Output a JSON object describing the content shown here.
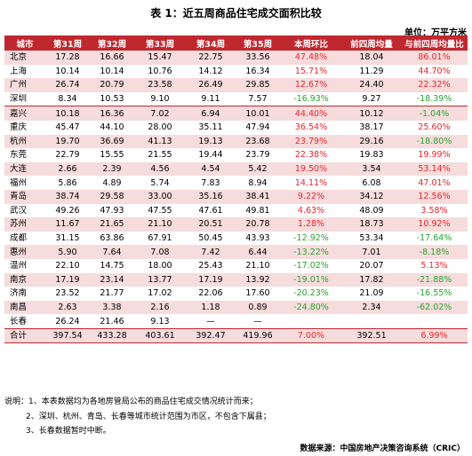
{
  "title": "表 1：近五周商品住宅成交面积比较",
  "unit": "单位：万平方米",
  "headers": [
    "城市",
    "第31周",
    "第32周",
    "第33周",
    "第34周",
    "第35周",
    "本周环比",
    "前四周均量",
    "与前四周均量比"
  ],
  "rows": [
    {
      "cells": [
        "北京",
        "17.28",
        "16.66",
        "15.47",
        "22.75",
        "33.56",
        "47.48%",
        "18.04",
        "86.01%"
      ],
      "pink": true,
      "group": false,
      "total": false
    },
    {
      "cells": [
        "上海",
        "10.14",
        "10.14",
        "10.76",
        "14.12",
        "16.34",
        "15.71%",
        "11.29",
        "44.70%"
      ],
      "pink": false,
      "group": false,
      "total": false
    },
    {
      "cells": [
        "广州",
        "26.74",
        "20.79",
        "23.58",
        "26.49",
        "29.85",
        "12.67%",
        "24.40",
        "22.32%"
      ],
      "pink": true,
      "group": false,
      "total": false
    },
    {
      "cells": [
        "深圳",
        "8.34",
        "10.53",
        "9.10",
        "9.11",
        "7.57",
        "-16.93%",
        "9.27",
        "-18.39%"
      ],
      "pink": false,
      "group": false,
      "total": false
    },
    {
      "cells": [
        "嘉兴",
        "10.18",
        "16.36",
        "7.02",
        "6.94",
        "10.01",
        "44.40%",
        "10.12",
        "-1.04%"
      ],
      "pink": true,
      "group": true,
      "total": false
    },
    {
      "cells": [
        "重庆",
        "45.47",
        "44.10",
        "28.00",
        "35.11",
        "47.94",
        "36.54%",
        "38.17",
        "25.60%"
      ],
      "pink": false,
      "group": false,
      "total": false
    },
    {
      "cells": [
        "杭州",
        "19.70",
        "36.69",
        "41.13",
        "19.13",
        "23.68",
        "23.79%",
        "29.16",
        "-18.80%"
      ],
      "pink": true,
      "group": false,
      "total": false
    },
    {
      "cells": [
        "东莞",
        "22.79",
        "15.55",
        "21.55",
        "19.44",
        "23.79",
        "22.38%",
        "19.83",
        "19.99%"
      ],
      "pink": false,
      "group": false,
      "total": false
    },
    {
      "cells": [
        "大连",
        "2.66",
        "2.39",
        "4.56",
        "4.54",
        "5.42",
        "19.50%",
        "3.54",
        "53.14%"
      ],
      "pink": true,
      "group": false,
      "total": false
    },
    {
      "cells": [
        "福州",
        "5.86",
        "4.89",
        "5.74",
        "7.83",
        "8.94",
        "14.11%",
        "6.08",
        "47.01%"
      ],
      "pink": false,
      "group": false,
      "total": false
    },
    {
      "cells": [
        "青岛",
        "38.74",
        "29.58",
        "33.00",
        "35.16",
        "38.41",
        "9.22%",
        "34.12",
        "12.56%"
      ],
      "pink": true,
      "group": false,
      "total": false
    },
    {
      "cells": [
        "武汉",
        "49.26",
        "47.93",
        "47.55",
        "47.61",
        "49.81",
        "4.63%",
        "48.09",
        "3.58%"
      ],
      "pink": false,
      "group": false,
      "total": false
    },
    {
      "cells": [
        "苏州",
        "11.67",
        "21.65",
        "21.10",
        "20.51",
        "20.78",
        "1.28%",
        "18.73",
        "10.92%"
      ],
      "pink": true,
      "group": false,
      "total": false
    },
    {
      "cells": [
        "成都",
        "31.15",
        "63.86",
        "67.91",
        "50.45",
        "43.93",
        "-12.92%",
        "53.34",
        "-17.64%"
      ],
      "pink": false,
      "group": false,
      "total": false
    },
    {
      "cells": [
        "惠州",
        "5.90",
        "7.64",
        "7.08",
        "7.42",
        "6.44",
        "-13.22%",
        "7.01",
        "-8.18%"
      ],
      "pink": true,
      "group": false,
      "total": false
    },
    {
      "cells": [
        "温州",
        "22.10",
        "14.75",
        "18.00",
        "25.43",
        "21.10",
        "-17.02%",
        "20.07",
        "5.13%"
      ],
      "pink": false,
      "group": false,
      "total": false
    },
    {
      "cells": [
        "南京",
        "17.19",
        "23.14",
        "13.77",
        "17.19",
        "13.92",
        "-19.01%",
        "17.82",
        "-21.88%"
      ],
      "pink": true,
      "group": false,
      "total": false
    },
    {
      "cells": [
        "济南",
        "23.52",
        "21.77",
        "17.02",
        "22.06",
        "17.60",
        "-20.23%",
        "21.09",
        "-16.55%"
      ],
      "pink": false,
      "group": false,
      "total": false
    },
    {
      "cells": [
        "南昌",
        "2.63",
        "3.38",
        "2.16",
        "1.18",
        "0.89",
        "-24.80%",
        "2.34",
        "-62.02%"
      ],
      "pink": true,
      "group": false,
      "total": false
    },
    {
      "cells": [
        "长春",
        "26.24",
        "21.46",
        "9.13",
        "—",
        "—",
        "",
        "",
        ""
      ],
      "pink": false,
      "group": false,
      "total": false
    },
    {
      "cells": [
        "合计",
        "397.54",
        "433.28",
        "403.61",
        "392.47",
        "419.96",
        "7.00%",
        "392.51",
        "6.99%"
      ],
      "pink": true,
      "group": false,
      "total": true
    }
  ],
  "notes": [
    "说明：1、本表数据均为各地房管局公布的商品住宅成交情况统计而来；",
    "2、深圳、杭州、青岛、长春等城市统计范围为市区，不包含下属县；",
    "3、长春数据暂时中断。"
  ],
  "source": "数据来源：中国房地产决策咨询系统（CRIC）",
  "colors": {
    "header_bg": "#c0282f",
    "pink_row": "#f6dcdc",
    "positive": "#e8242c",
    "negative": "#2aa334"
  }
}
